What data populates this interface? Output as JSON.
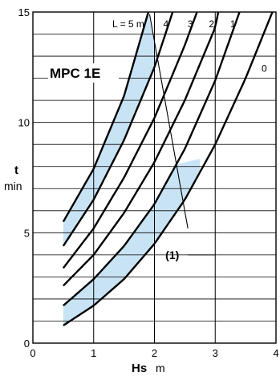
{
  "chart_data": {
    "type": "line",
    "title": "MPC 1E",
    "xlabel": {
      "symbol": "Hs",
      "unit": "m"
    },
    "ylabel": {
      "symbol": "t",
      "unit": "min"
    },
    "xlim": [
      0,
      4
    ],
    "ylim": [
      0,
      15
    ],
    "x_ticks": [
      "0",
      "1",
      "2",
      "3",
      "4"
    ],
    "y_ticks": [
      "0",
      "5",
      "10",
      "15"
    ],
    "grid": true,
    "series": [
      {
        "name": "L = 5 m",
        "points": [
          [
            0.5,
            5.5
          ],
          [
            1.0,
            7.9
          ],
          [
            1.5,
            11.2
          ],
          [
            1.9,
            15.0
          ]
        ]
      },
      {
        "name": "4",
        "points": [
          [
            0.5,
            4.4
          ],
          [
            1.0,
            6.5
          ],
          [
            1.5,
            9.2
          ],
          [
            2.0,
            12.5
          ],
          [
            2.3,
            15.0
          ]
        ]
      },
      {
        "name": "3",
        "points": [
          [
            0.5,
            3.4
          ],
          [
            1.0,
            5.2
          ],
          [
            1.5,
            7.5
          ],
          [
            2.0,
            10.2
          ],
          [
            2.5,
            13.5
          ],
          [
            2.7,
            15.0
          ]
        ]
      },
      {
        "name": "2",
        "points": [
          [
            0.5,
            2.6
          ],
          [
            1.0,
            4.0
          ],
          [
            1.5,
            5.9
          ],
          [
            2.0,
            8.2
          ],
          [
            2.5,
            11.0
          ],
          [
            3.0,
            14.3
          ],
          [
            3.05,
            15.0
          ]
        ]
      },
      {
        "name": "1",
        "points": [
          [
            0.5,
            1.7
          ],
          [
            1.0,
            2.9
          ],
          [
            1.5,
            4.4
          ],
          [
            2.0,
            6.3
          ],
          [
            2.5,
            8.8
          ],
          [
            3.0,
            11.9
          ],
          [
            3.4,
            15.0
          ]
        ]
      },
      {
        "name": "0",
        "points": [
          [
            0.5,
            0.8
          ],
          [
            1.0,
            1.7
          ],
          [
            1.5,
            2.9
          ],
          [
            2.0,
            4.5
          ],
          [
            2.5,
            6.5
          ],
          [
            3.0,
            9.0
          ],
          [
            3.5,
            12.0
          ],
          [
            4.0,
            15.4
          ]
        ]
      }
    ],
    "shaded_band_1": {
      "x_start": 0.5,
      "lower_series": "4",
      "upper_series": "L = 5 m",
      "until_x": 1.9
    },
    "shaded_band_2": {
      "x_end": 2.75,
      "lower_series": "0",
      "upper_series": "1"
    },
    "annotation": "(1)",
    "leader_line": {
      "from": [
        1.92,
        14.9
      ],
      "to": [
        2.55,
        5.2
      ]
    },
    "annotation_line": {
      "from": [
        2.55,
        4.0
      ],
      "to": [
        3.0,
        4.0
      ]
    }
  }
}
